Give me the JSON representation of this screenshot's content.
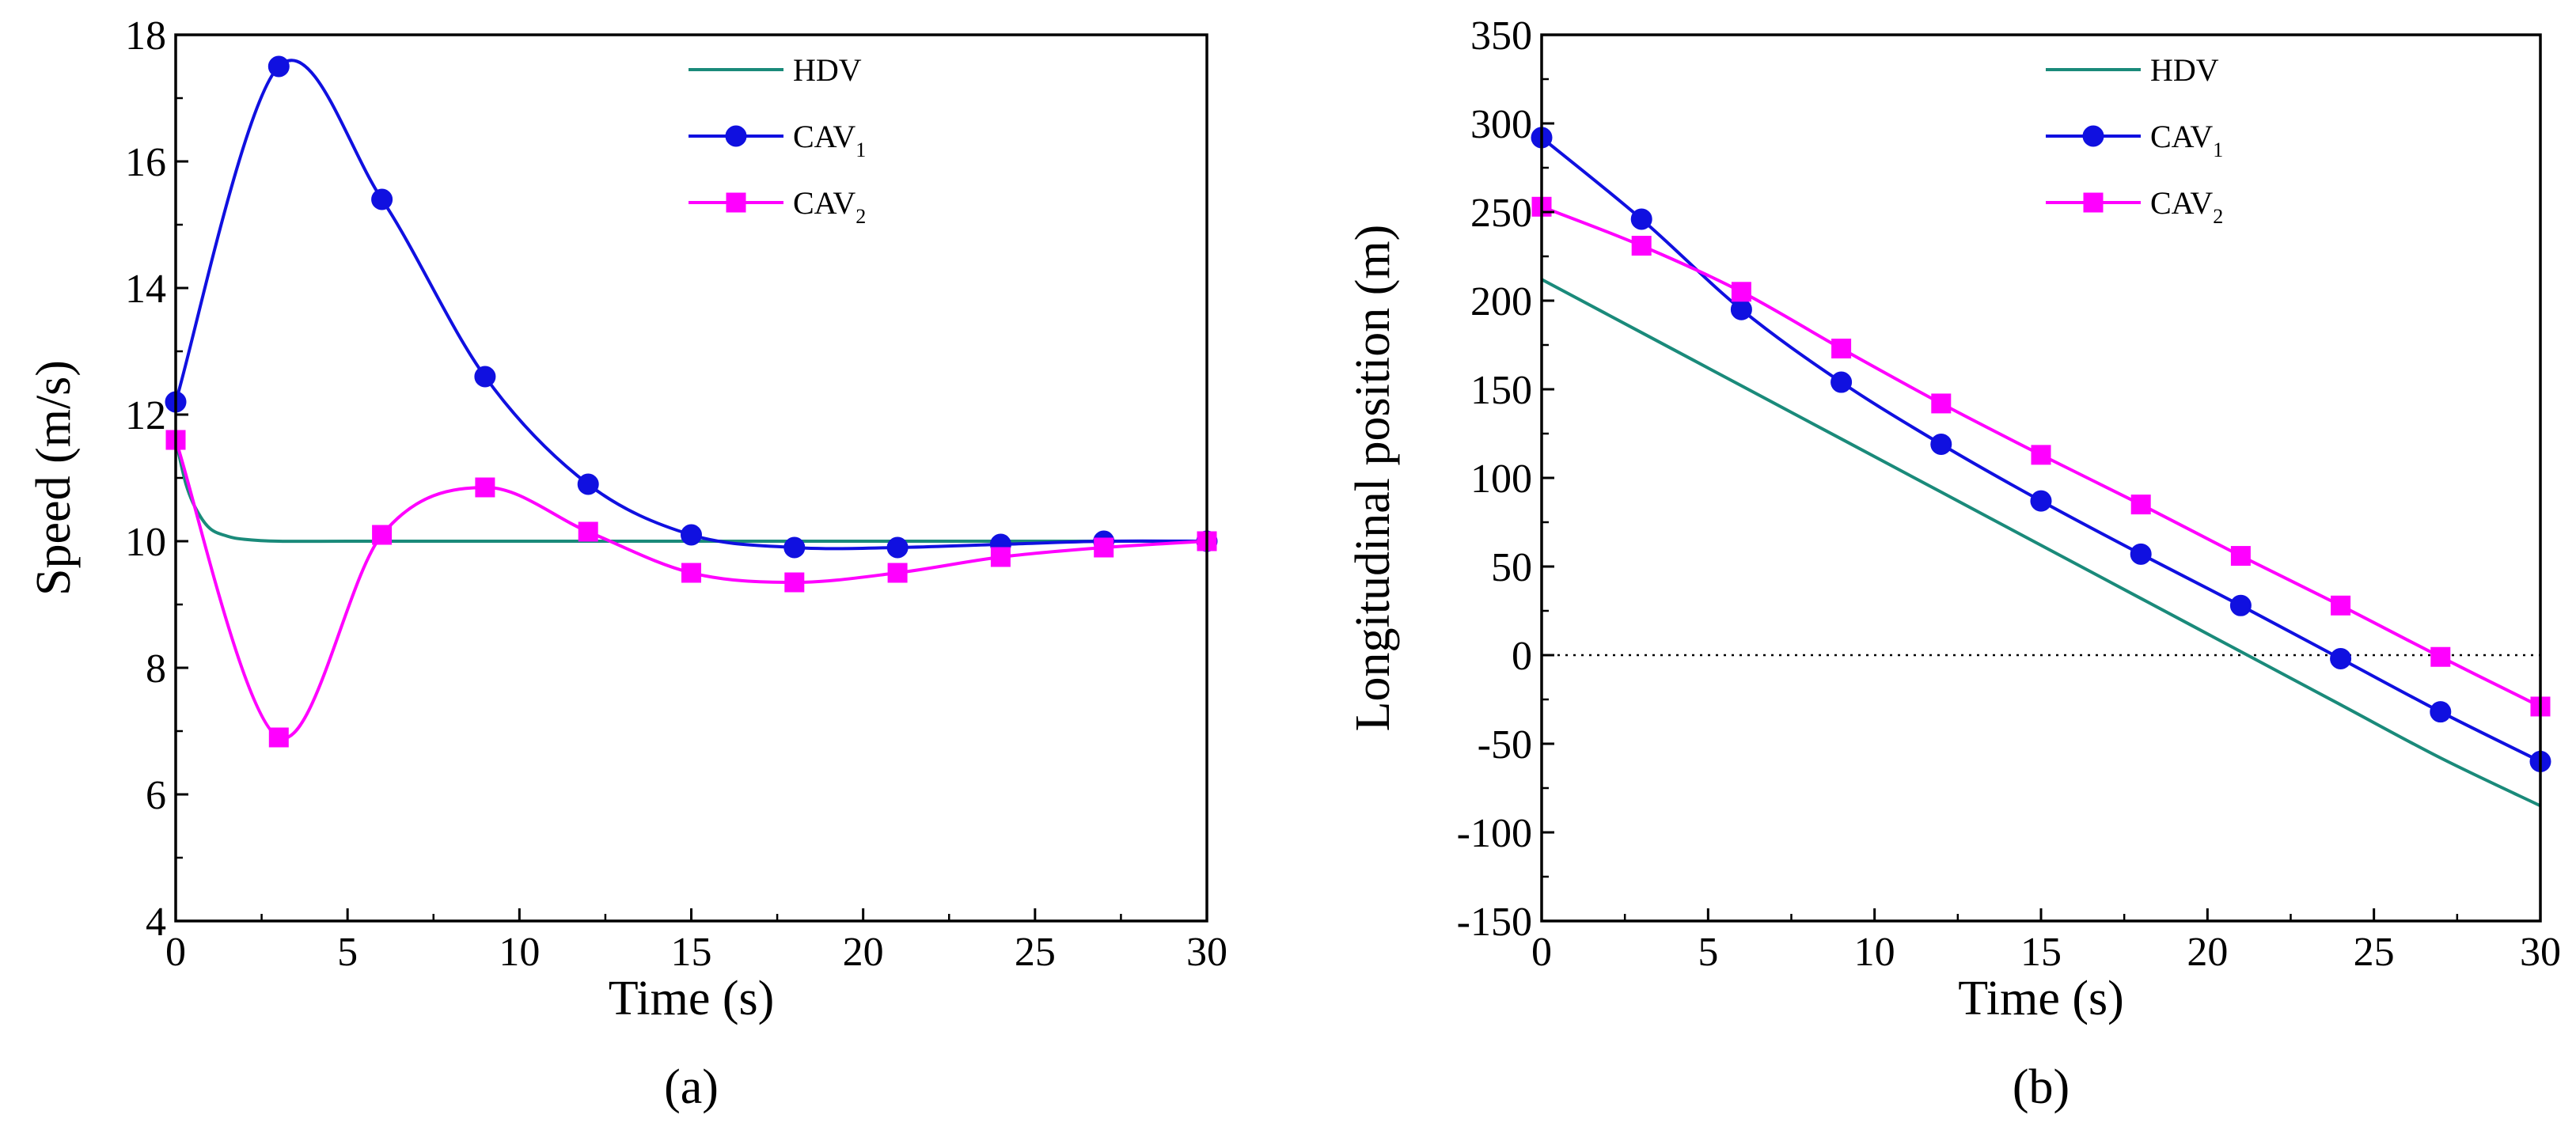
{
  "chart_data": [
    {
      "type": "line",
      "panel_label": "(a)",
      "xlabel": "Time (s)",
      "ylabel": "Speed (m/s)",
      "xlim": [
        0,
        30
      ],
      "ylim": [
        4,
        18
      ],
      "xticks": [
        "0",
        "5",
        "10",
        "15",
        "20",
        "25",
        "30"
      ],
      "yticks": [
        "4",
        "6",
        "8",
        "10",
        "12",
        "14",
        "16",
        "18"
      ],
      "x": [
        0,
        3,
        6,
        9,
        12,
        15,
        18,
        21,
        24,
        27,
        30
      ],
      "series": [
        {
          "name": "HDV",
          "marker": "none",
          "color": "#1a8a7a",
          "x": [
            0,
            0.3,
            0.6,
            1,
            1.5,
            2,
            3,
            5,
            10,
            15,
            20,
            25,
            30
          ],
          "values": [
            11.6,
            10.9,
            10.5,
            10.2,
            10.08,
            10.03,
            10.0,
            10.0,
            10.0,
            10.0,
            10.0,
            10.0,
            10.0
          ]
        },
        {
          "name": "CAV",
          "sub": "1",
          "marker": "circle",
          "color": "#1010e0",
          "values": [
            12.2,
            17.5,
            15.4,
            12.6,
            10.9,
            10.1,
            9.9,
            9.9,
            9.95,
            10.0,
            10.0
          ]
        },
        {
          "name": "CAV",
          "sub": "2",
          "marker": "square",
          "color": "#ff00ff",
          "values": [
            11.6,
            6.9,
            10.1,
            10.85,
            10.15,
            9.5,
            9.35,
            9.5,
            9.75,
            9.9,
            10.0
          ]
        }
      ],
      "legend_position": "top-right"
    },
    {
      "type": "line",
      "panel_label": "(b)",
      "xlabel": "Time (s)",
      "ylabel": "Longitudinal position (m)",
      "xlim": [
        0,
        30
      ],
      "ylim": [
        -150,
        350
      ],
      "xticks": [
        "0",
        "5",
        "10",
        "15",
        "20",
        "25",
        "30"
      ],
      "yticks": [
        "-150",
        "-100",
        "-50",
        "0",
        "50",
        "100",
        "150",
        "200",
        "250",
        "300",
        "350"
      ],
      "reference_line": {
        "y": 0,
        "style": "dotted"
      },
      "x": [
        0,
        3,
        6,
        9,
        12,
        15,
        18,
        21,
        24,
        27,
        30
      ],
      "series": [
        {
          "name": "HDV",
          "marker": "none",
          "color": "#1a8a7a",
          "values": [
            212,
            182,
            152,
            122,
            92,
            62,
            32,
            2,
            -28,
            -58,
            -85
          ]
        },
        {
          "name": "CAV",
          "sub": "1",
          "marker": "circle",
          "color": "#1010e0",
          "values": [
            292,
            246,
            195,
            154,
            119,
            87,
            57,
            28,
            -2,
            -32,
            -60
          ]
        },
        {
          "name": "CAV",
          "sub": "2",
          "marker": "square",
          "color": "#ff00ff",
          "values": [
            253,
            231,
            205,
            173,
            142,
            113,
            85,
            56,
            28,
            -1,
            -29
          ]
        }
      ],
      "legend_position": "top-right"
    }
  ]
}
